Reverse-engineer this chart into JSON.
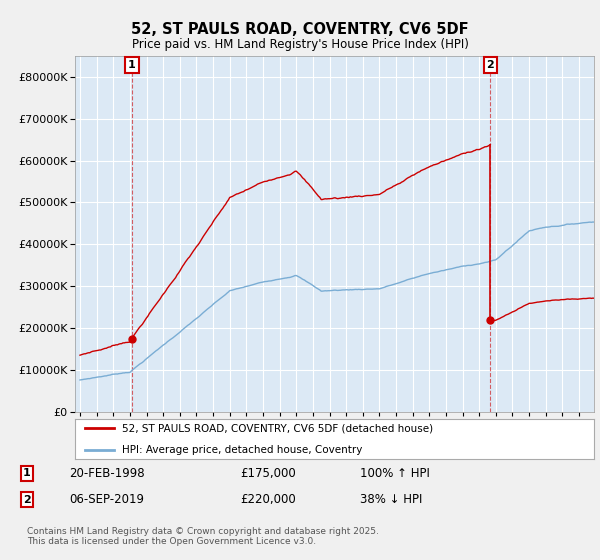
{
  "title": "52, ST PAULS ROAD, COVENTRY, CV6 5DF",
  "subtitle": "Price paid vs. HM Land Registry's House Price Index (HPI)",
  "hpi_label": "HPI: Average price, detached house, Coventry",
  "property_label": "52, ST PAULS ROAD, COVENTRY, CV6 5DF (detached house)",
  "transaction1": {
    "label": "1",
    "date": "20-FEB-1998",
    "price": "£175,000",
    "hpi": "100% ↑ HPI"
  },
  "transaction2": {
    "label": "2",
    "date": "06-SEP-2019",
    "price": "£220,000",
    "hpi": "38% ↓ HPI"
  },
  "ylim": [
    0,
    850000
  ],
  "yticks": [
    0,
    100000,
    200000,
    300000,
    400000,
    500000,
    600000,
    700000,
    800000
  ],
  "background_color": "#f0f0f0",
  "plot_bg_color": "#dce9f5",
  "red_color": "#cc0000",
  "blue_color": "#7aadd4",
  "grid_color": "#ffffff",
  "copyright_text": "Contains HM Land Registry data © Crown copyright and database right 2025.\nThis data is licensed under the Open Government Licence v3.0.",
  "xstart": 1995,
  "xend": 2025,
  "t1_year": 1998.12,
  "t1_price": 175000,
  "t2_year": 2019.67,
  "t2_price": 220000
}
